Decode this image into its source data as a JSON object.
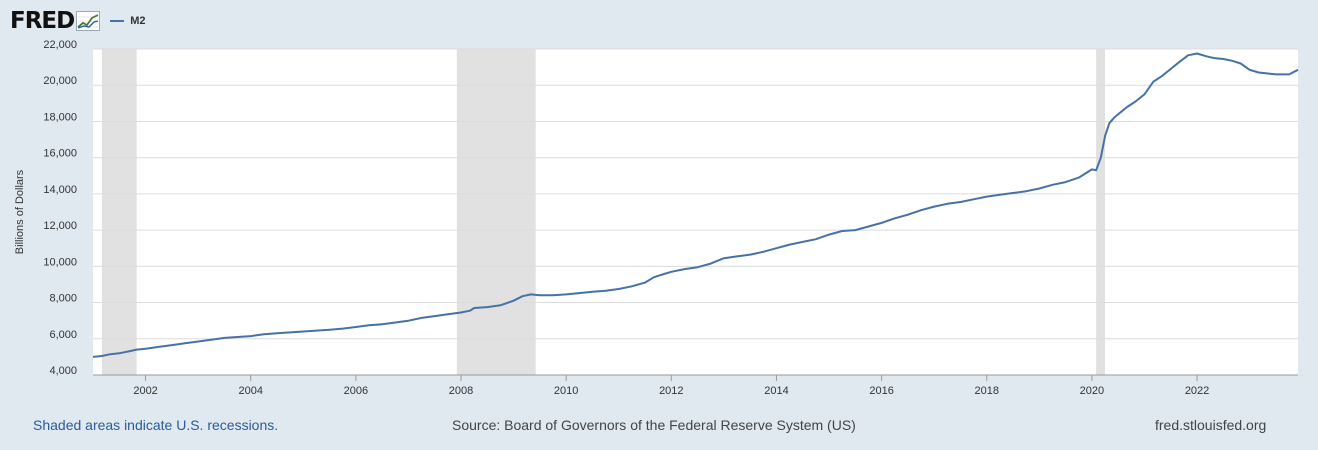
{
  "header": {
    "logo": "FRED",
    "logo_icon": "line-chart-icon",
    "legend_label": "M2"
  },
  "footer": {
    "recession_note": "Shaded areas indicate U.S. recessions.",
    "source": "Source: Board of Governors of the Federal Reserve System (US)",
    "site": "fred.stlouisfed.org"
  },
  "colors": {
    "line": "#4572a7",
    "recession": "#e1e1e1",
    "background": "#e1e9f0",
    "plot": "#ffffff"
  },
  "chart_data": {
    "type": "line",
    "title": "",
    "xlabel": "",
    "ylabel": "Billions of Dollars",
    "ylim": [
      4000,
      22000
    ],
    "xlim": [
      2001.0,
      2023.92
    ],
    "yticks": [
      4000,
      6000,
      8000,
      10000,
      12000,
      14000,
      16000,
      18000,
      20000,
      22000
    ],
    "ytick_labels": [
      "4,000",
      "6,000",
      "8,000",
      "10,000",
      "12,000",
      "14,000",
      "16,000",
      "18,000",
      "20,000",
      "22,000"
    ],
    "xticks": [
      2002,
      2004,
      2006,
      2008,
      2010,
      2012,
      2014,
      2016,
      2018,
      2020,
      2022
    ],
    "xtick_labels": [
      "2002",
      "2004",
      "2006",
      "2008",
      "2010",
      "2012",
      "2014",
      "2016",
      "2018",
      "2020",
      "2022"
    ],
    "grid": true,
    "recessions": [
      [
        2001.17,
        2001.83
      ],
      [
        2007.92,
        2009.42
      ],
      [
        2020.08,
        2020.25
      ]
    ],
    "series": [
      {
        "name": "M2",
        "x": [
          2001.0,
          2001.17,
          2001.33,
          2001.5,
          2001.67,
          2001.83,
          2002.0,
          2002.25,
          2002.5,
          2002.75,
          2003.0,
          2003.25,
          2003.5,
          2003.75,
          2004.0,
          2004.25,
          2004.5,
          2004.75,
          2005.0,
          2005.25,
          2005.5,
          2005.75,
          2006.0,
          2006.25,
          2006.5,
          2006.75,
          2007.0,
          2007.25,
          2007.5,
          2007.75,
          2008.0,
          2008.17,
          2008.25,
          2008.5,
          2008.75,
          2009.0,
          2009.17,
          2009.33,
          2009.5,
          2009.75,
          2010.0,
          2010.25,
          2010.5,
          2010.75,
          2011.0,
          2011.25,
          2011.5,
          2011.67,
          2011.83,
          2012.0,
          2012.25,
          2012.5,
          2012.75,
          2013.0,
          2013.25,
          2013.5,
          2013.75,
          2014.0,
          2014.25,
          2014.5,
          2014.75,
          2015.0,
          2015.25,
          2015.5,
          2015.75,
          2016.0,
          2016.25,
          2016.5,
          2016.75,
          2017.0,
          2017.25,
          2017.5,
          2017.75,
          2018.0,
          2018.25,
          2018.5,
          2018.75,
          2019.0,
          2019.25,
          2019.5,
          2019.75,
          2020.0,
          2020.08,
          2020.17,
          2020.25,
          2020.33,
          2020.42,
          2020.5,
          2020.67,
          2020.83,
          2021.0,
          2021.17,
          2021.33,
          2021.5,
          2021.67,
          2021.83,
          2022.0,
          2022.17,
          2022.25,
          2022.33,
          2022.5,
          2022.67,
          2022.83,
          2023.0,
          2023.17,
          2023.33,
          2023.5,
          2023.75,
          2023.92
        ],
        "y": [
          5000,
          5050,
          5150,
          5200,
          5300,
          5400,
          5450,
          5550,
          5650,
          5750,
          5850,
          5950,
          6050,
          6100,
          6150,
          6250,
          6300,
          6350,
          6400,
          6450,
          6500,
          6560,
          6650,
          6750,
          6800,
          6900,
          7000,
          7150,
          7250,
          7350,
          7450,
          7550,
          7700,
          7750,
          7850,
          8100,
          8350,
          8450,
          8400,
          8400,
          8450,
          8520,
          8600,
          8650,
          8750,
          8900,
          9100,
          9400,
          9550,
          9700,
          9850,
          9950,
          10150,
          10450,
          10550,
          10650,
          10800,
          11000,
          11200,
          11350,
          11500,
          11750,
          11950,
          12000,
          12200,
          12400,
          12650,
          12850,
          13100,
          13300,
          13450,
          13550,
          13700,
          13850,
          13950,
          14050,
          14150,
          14300,
          14500,
          14650,
          14900,
          15350,
          15300,
          16000,
          17200,
          17900,
          18200,
          18400,
          18800,
          19100,
          19500,
          20200,
          20500,
          20900,
          21300,
          21650,
          21750,
          21600,
          21550,
          21500,
          21450,
          21350,
          21200,
          20850,
          20700,
          20650,
          20600,
          20600,
          20850
        ]
      }
    ]
  }
}
